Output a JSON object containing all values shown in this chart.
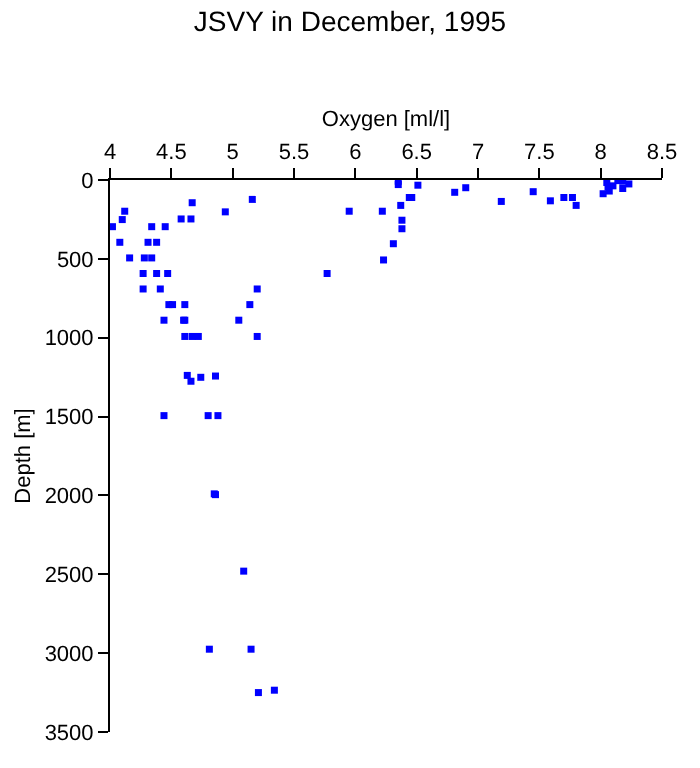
{
  "chart_data": {
    "type": "scatter",
    "title": "JSVY in December, 1995",
    "xlabel": "Oxygen [ml/l]",
    "ylabel": "Depth [m]",
    "x": [
      4.02,
      4.08,
      4.1,
      4.12,
      4.16,
      4.28,
      4.34,
      4.31,
      4.38,
      4.34,
      4.45,
      4.27,
      4.38,
      4.47,
      4.27,
      4.41,
      4.48,
      4.51,
      4.61,
      4.44,
      4.6,
      4.61,
      4.61,
      4.67,
      4.72,
      4.63,
      4.66,
      4.74,
      4.86,
      4.44,
      4.8,
      4.88,
      4.58,
      4.66,
      4.67,
      4.94,
      5.16,
      5.95,
      5.77,
      5.05,
      5.14,
      5.2,
      5.2,
      6.35,
      6.35,
      6.51,
      6.44,
      6.46,
      6.37,
      6.38,
      6.38,
      6.31,
      6.23,
      6.22,
      6.81,
      6.9,
      7.19,
      7.45,
      7.59,
      7.7,
      7.77,
      7.8,
      8.05,
      8.02,
      8.07,
      8.1,
      8.14,
      8.18,
      8.18,
      8.23,
      8.06,
      4.85,
      4.86,
      5.09,
      4.81,
      5.15,
      5.21,
      5.34
    ],
    "values": [
      296,
      395,
      251,
      198,
      494,
      494,
      494,
      395,
      395,
      296,
      296,
      593,
      593,
      593,
      691,
      691,
      790,
      790,
      790,
      889,
      889,
      889,
      992,
      992,
      992,
      1239,
      1276,
      1251,
      1243,
      1494,
      1494,
      1494,
      247,
      247,
      144,
      202,
      123,
      198,
      593,
      889,
      790,
      691,
      992,
      8,
      29,
      33,
      111,
      111,
      161,
      255,
      309,
      404,
      507,
      198,
      78,
      49,
      136,
      74,
      132,
      111,
      111,
      161,
      16,
      87,
      70,
      37,
      4,
      8,
      54,
      25,
      45,
      1990,
      1995,
      2480,
      2975,
      2975,
      3250,
      3235
    ],
    "color": "#0000ff",
    "marker": "square",
    "xlim": [
      4,
      8.5
    ],
    "xticks": [
      4,
      4.5,
      5,
      5.5,
      6,
      6.5,
      7,
      7.5,
      8,
      8.5
    ],
    "ylim": [
      3500,
      0
    ],
    "yticks": [
      0,
      500,
      1000,
      1500,
      2000,
      2500,
      3000,
      3500
    ]
  }
}
